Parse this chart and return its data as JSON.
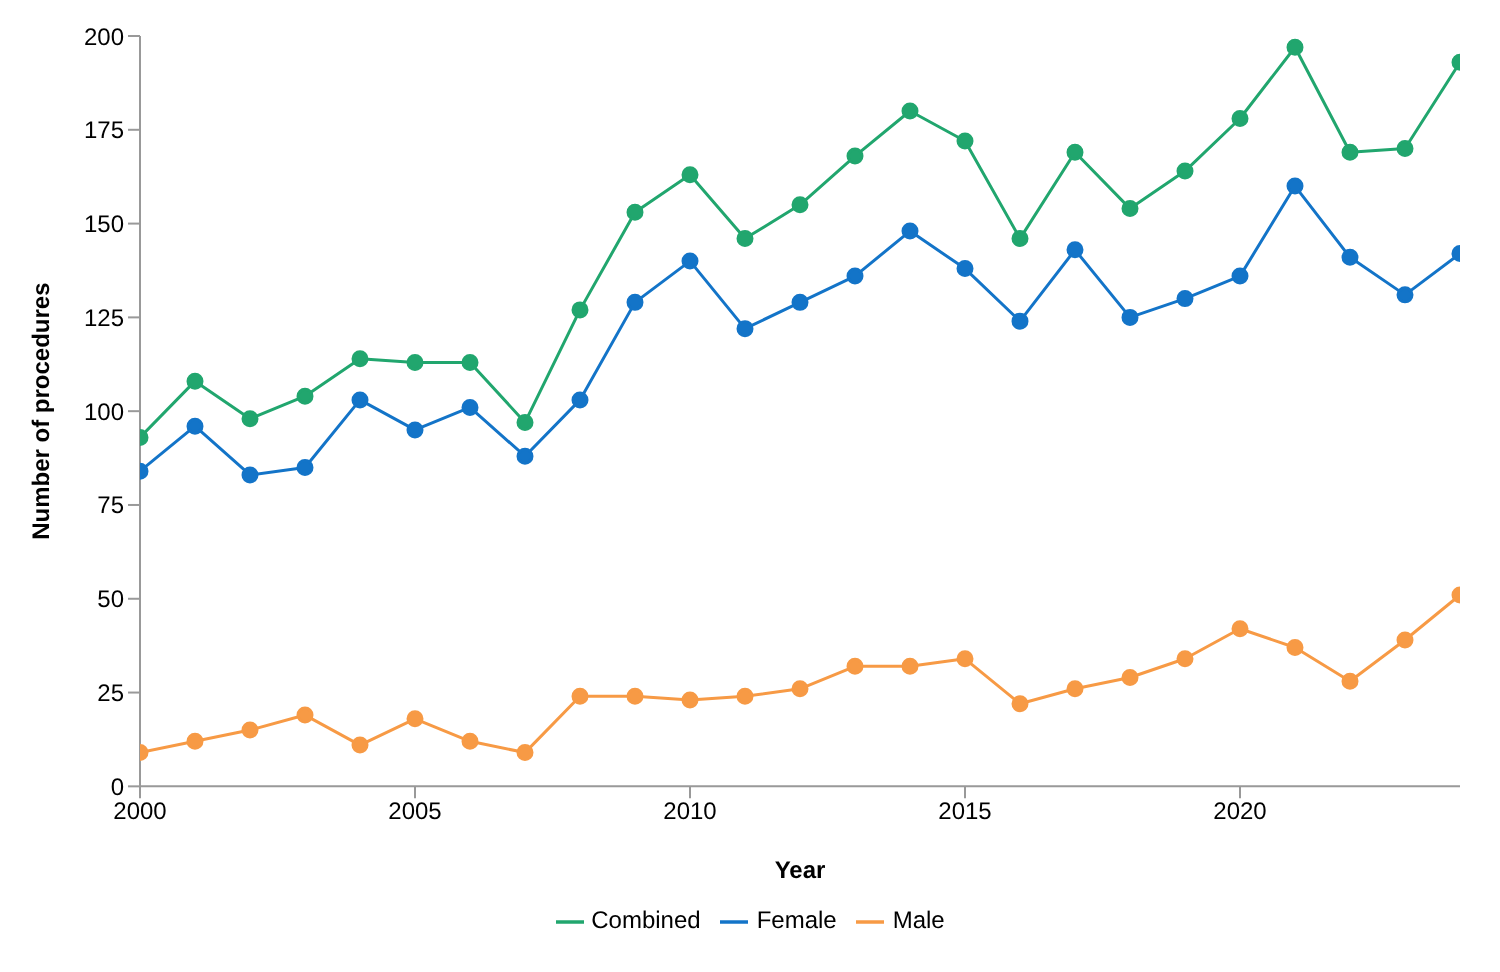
{
  "chart_data": {
    "type": "line",
    "xlabel": "Year",
    "ylabel": "Number of procedures",
    "x": [
      2000,
      2001,
      2002,
      2003,
      2004,
      2005,
      2006,
      2007,
      2008,
      2009,
      2010,
      2011,
      2012,
      2013,
      2014,
      2015,
      2016,
      2017,
      2018,
      2019,
      2020,
      2021,
      2022,
      2023,
      2024
    ],
    "series": [
      {
        "name": "Combined",
        "color": "#21a66e",
        "values": [
          93,
          108,
          98,
          104,
          114,
          113,
          113,
          97,
          127,
          153,
          163,
          146,
          155,
          168,
          180,
          172,
          146,
          169,
          154,
          164,
          178,
          197,
          169,
          170,
          193
        ]
      },
      {
        "name": "Female",
        "color": "#1374c8",
        "values": [
          84,
          96,
          83,
          85,
          103,
          95,
          101,
          88,
          103,
          129,
          140,
          122,
          129,
          136,
          148,
          138,
          124,
          143,
          125,
          130,
          136,
          160,
          141,
          131,
          142
        ]
      },
      {
        "name": "Male",
        "color": "#f79a45",
        "values": [
          9,
          12,
          15,
          19,
          11,
          18,
          12,
          9,
          24,
          24,
          23,
          24,
          26,
          32,
          32,
          34,
          22,
          26,
          29,
          34,
          42,
          37,
          28,
          39,
          51
        ]
      }
    ],
    "xlim": [
      2000,
      2024
    ],
    "xticks": [
      2000,
      2005,
      2010,
      2015,
      2020
    ],
    "ylim": [
      0,
      200
    ],
    "yticks": [
      0,
      25,
      50,
      75,
      100,
      125,
      150,
      175,
      200
    ],
    "grid": false,
    "legend": "bottom",
    "marker": "circle",
    "line_style": "solid"
  }
}
